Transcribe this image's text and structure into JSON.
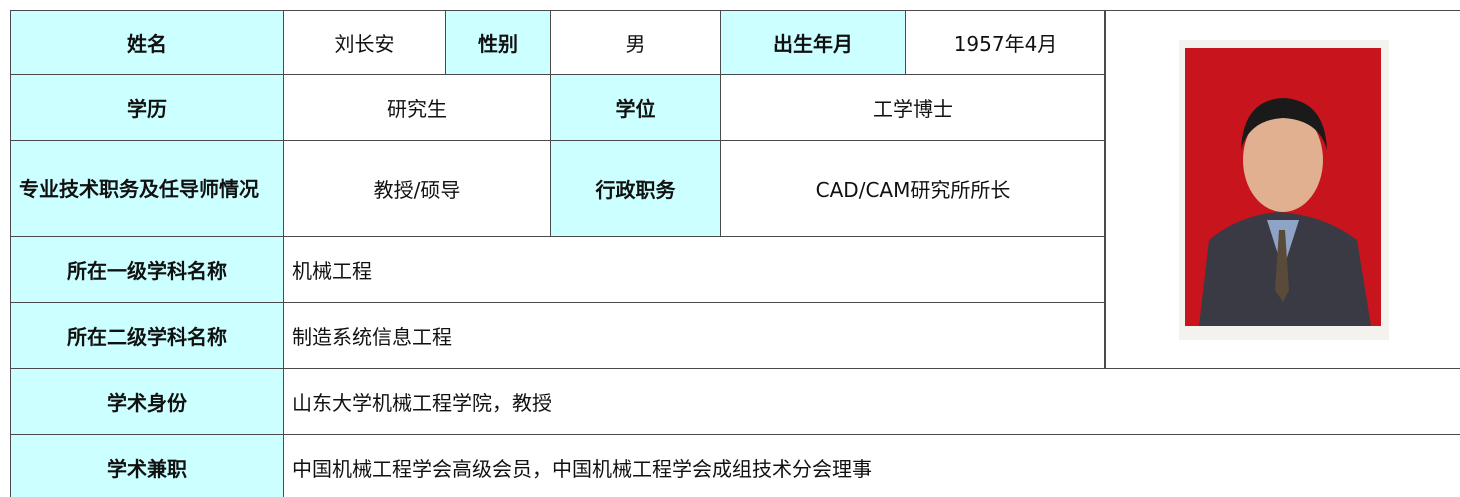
{
  "table": {
    "rows": [
      [
        "姓名",
        "刘长安",
        "性别",
        "男",
        "出生年月",
        "1957年4月"
      ],
      [
        "学历",
        "研究生",
        "学位",
        "工学博士"
      ],
      [
        "专业技术职务及任导师情况",
        "教授/硕导",
        "行政职务",
        "CAD/CAM研究所所长"
      ],
      [
        "所在一级学科名称",
        "机械工程"
      ],
      [
        "所在二级学科名称",
        "制造系统信息工程"
      ],
      [
        "学术身份",
        "山东大学机械工程学院，教授"
      ],
      [
        "学术兼职",
        "中国机械工程学会高级会员，中国机械工程学会成组技术分会理事"
      ]
    ]
  }
}
